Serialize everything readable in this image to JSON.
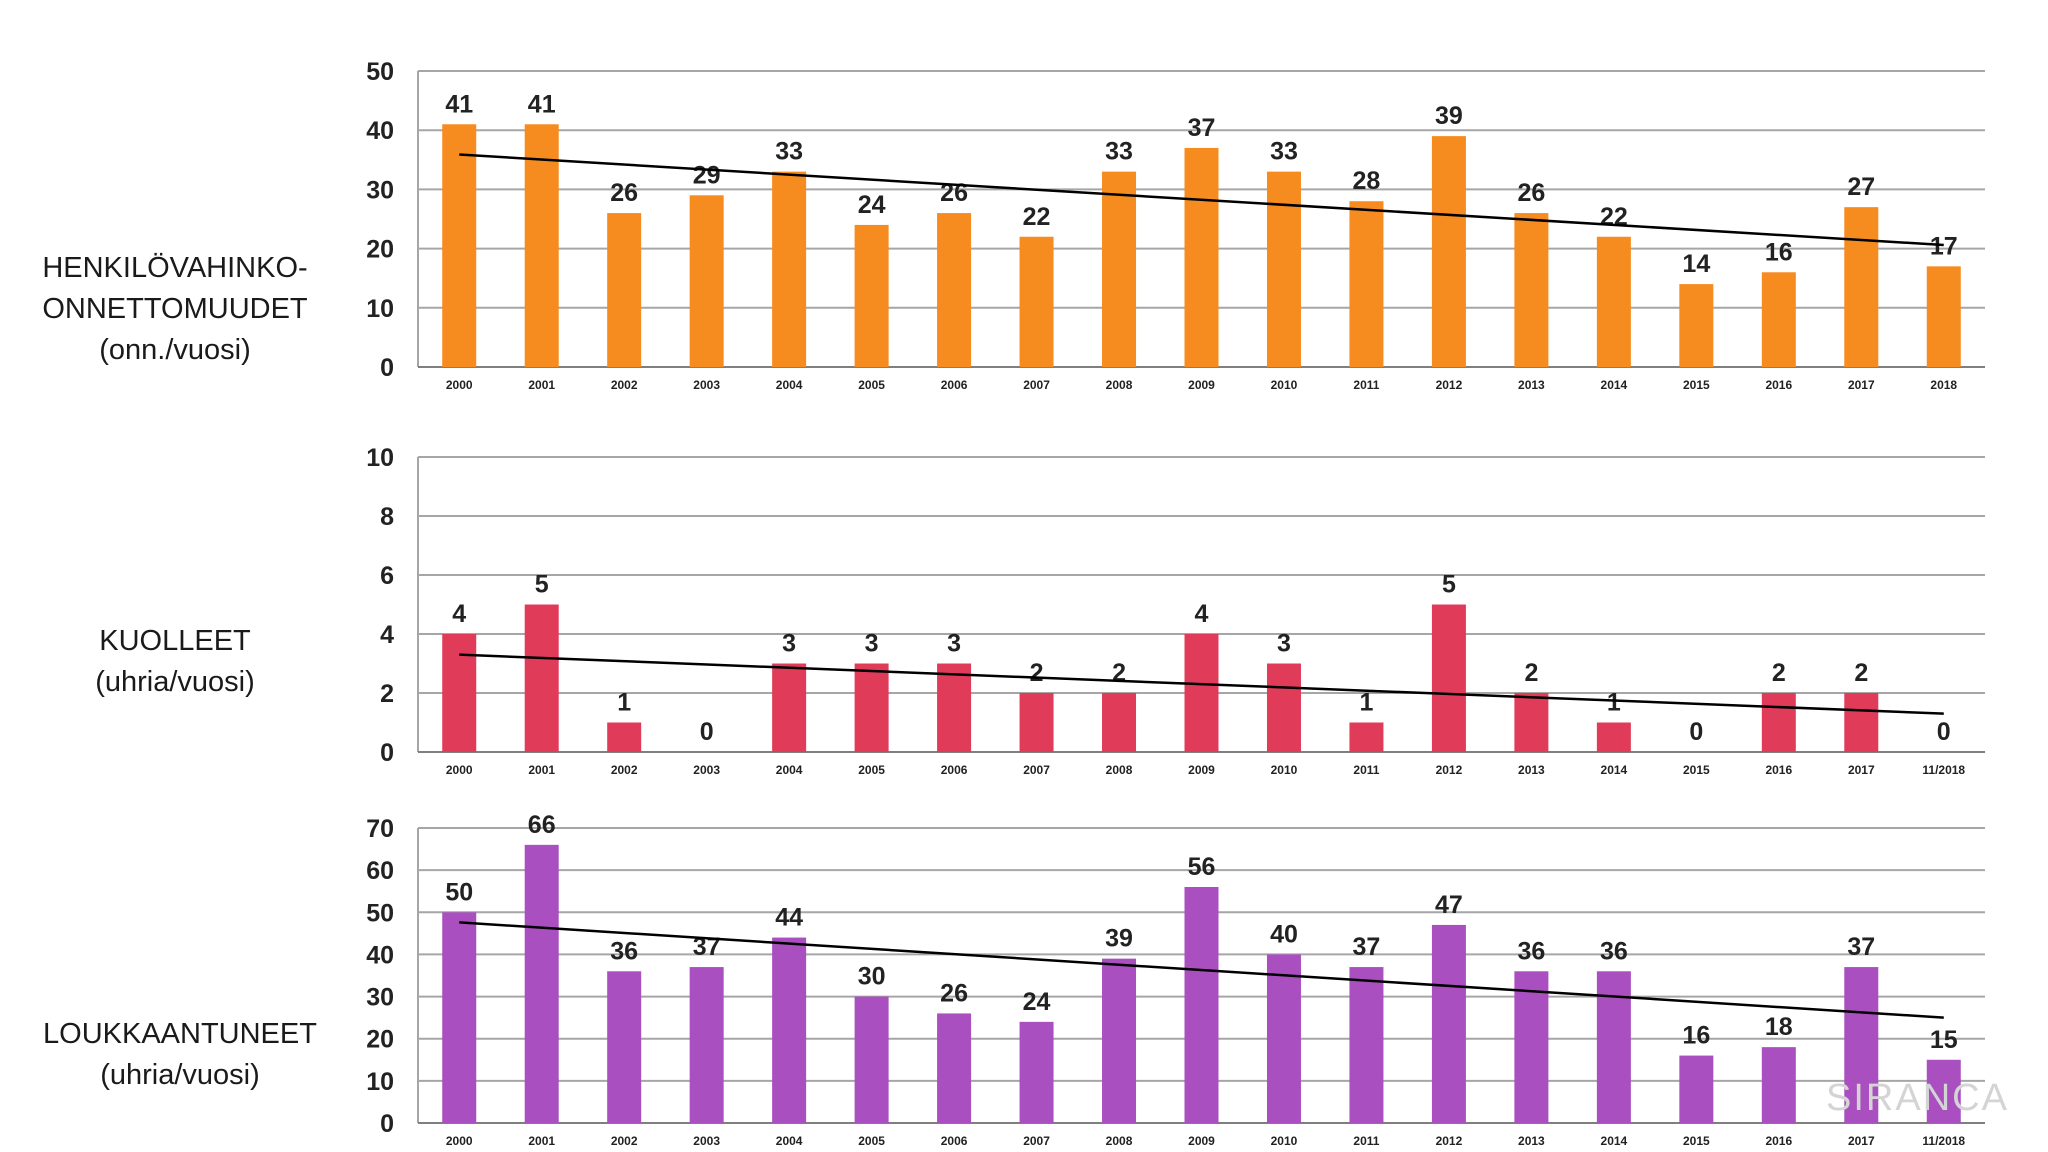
{
  "row_labels": [
    [
      "HENKILÖVAHINKO-",
      "ONNETTOMUUDET",
      "(onn./vuosi)"
    ],
    [
      "KUOLLEET",
      "(uhria/vuosi)"
    ],
    [
      "LOUKKAANTUNEET",
      "(uhria/vuosi)"
    ]
  ],
  "watermark": "SIRANCA",
  "chart_data": [
    {
      "type": "bar",
      "categories": [
        "2000",
        "2001",
        "2002",
        "2003",
        "2004",
        "2005",
        "2006",
        "2007",
        "2008",
        "2009",
        "2010",
        "2011",
        "2012",
        "2013",
        "2014",
        "2015",
        "2016",
        "2017",
        "2018"
      ],
      "values": [
        41,
        41,
        26,
        29,
        33,
        24,
        26,
        22,
        33,
        37,
        33,
        28,
        39,
        26,
        22,
        14,
        16,
        27,
        17
      ],
      "ylim": [
        0,
        50
      ],
      "yticks": [
        0,
        10,
        20,
        30,
        40,
        50
      ],
      "color": "#f68b1f",
      "trendline": [
        35.9,
        20.6
      ],
      "grid": true,
      "legend": "none"
    },
    {
      "type": "bar",
      "categories": [
        "2000",
        "2001",
        "2002",
        "2003",
        "2004",
        "2005",
        "2006",
        "2007",
        "2008",
        "2009",
        "2010",
        "2011",
        "2012",
        "2013",
        "2014",
        "2015",
        "2016",
        "2017",
        "11/2018"
      ],
      "values": [
        4,
        5,
        1,
        0,
        3,
        3,
        3,
        2,
        2,
        4,
        3,
        1,
        5,
        2,
        1,
        0,
        2,
        2,
        0
      ],
      "ylim": [
        0,
        10
      ],
      "yticks": [
        0,
        2,
        4,
        6,
        8,
        10
      ],
      "color": "#e03c5a",
      "trendline": [
        3.3,
        1.3
      ],
      "grid": true,
      "legend": "none"
    },
    {
      "type": "bar",
      "categories": [
        "2000",
        "2001",
        "2002",
        "2003",
        "2004",
        "2005",
        "2006",
        "2007",
        "2008",
        "2009",
        "2010",
        "2011",
        "2012",
        "2013",
        "2014",
        "2015",
        "2016",
        "2017",
        "11/2018"
      ],
      "values": [
        50,
        66,
        36,
        37,
        44,
        30,
        26,
        24,
        39,
        56,
        40,
        37,
        47,
        36,
        36,
        16,
        18,
        37,
        15
      ],
      "ylim": [
        0,
        70
      ],
      "yticks": [
        0,
        10,
        20,
        30,
        40,
        50,
        60,
        70
      ],
      "color": "#a94fc0",
      "trendline": [
        47.6,
        25.0
      ],
      "grid": true,
      "legend": "none"
    }
  ]
}
